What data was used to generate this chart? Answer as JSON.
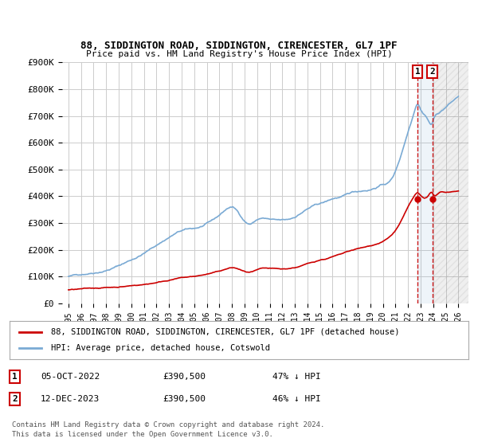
{
  "title": "88, SIDDINGTON ROAD, SIDDINGTON, CIRENCESTER, GL7 1PF",
  "subtitle": "Price paid vs. HM Land Registry's House Price Index (HPI)",
  "ylim": [
    0,
    900000
  ],
  "yticks": [
    0,
    100000,
    200000,
    300000,
    400000,
    500000,
    600000,
    700000,
    800000,
    900000
  ],
  "ytick_labels": [
    "£0",
    "£100K",
    "£200K",
    "£300K",
    "£400K",
    "£500K",
    "£600K",
    "£700K",
    "£800K",
    "£900K"
  ],
  "hpi_color": "#7aaad4",
  "price_color": "#cc0000",
  "dashed_color": "#cc0000",
  "bg_color": "#ffffff",
  "grid_color": "#cccccc",
  "hatch_color": "#e8e8e8",
  "transaction1_x": 2022.75,
  "transaction2_x": 2023.92,
  "transaction1_y": 390500,
  "transaction2_y": 390500,
  "transaction1": {
    "date": "05-OCT-2022",
    "price": 390500,
    "pct": "47%",
    "label": "1"
  },
  "transaction2": {
    "date": "12-DEC-2023",
    "price": 390500,
    "pct": "46%",
    "label": "2"
  },
  "legend_property": "88, SIDDINGTON ROAD, SIDDINGTON, CIRENCESTER, GL7 1PF (detached house)",
  "legend_hpi": "HPI: Average price, detached house, Cotswold",
  "footer1": "Contains HM Land Registry data © Crown copyright and database right 2024.",
  "footer2": "This data is licensed under the Open Government Licence v3.0.",
  "xlim_left": 1994.5,
  "xlim_right": 2026.8
}
